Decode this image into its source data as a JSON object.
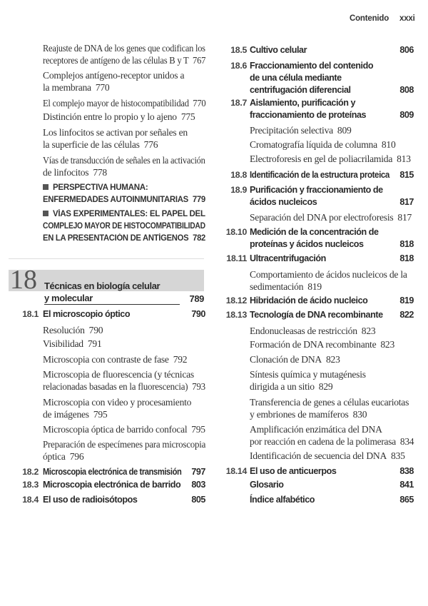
{
  "header": {
    "section": "Contenido",
    "page": "xxxi"
  },
  "left_top": [
    {
      "type": "sub",
      "lines": [
        "Reajuste de DNA de los genes que codifican los",
        "receptores de antígeno de las células B y T"
      ],
      "page": "767"
    },
    {
      "type": "sub",
      "lines": [
        "Complejos antígeno-receptor unidos a",
        "la membrana"
      ],
      "page": "770"
    },
    {
      "type": "sub",
      "lines": [
        "El complejo mayor de histocompatibilidad"
      ],
      "page": "770"
    },
    {
      "type": "sub",
      "lines": [
        "Distinción entre lo propio y lo ajeno"
      ],
      "page": "775"
    },
    {
      "type": "sub",
      "lines": [
        "Los linfocitos se activan por señales en",
        "la superficie de las células"
      ],
      "page": "776"
    },
    {
      "type": "sub",
      "lines": [
        "Vías de transducción de señales en la activación",
        "de linfocitos"
      ],
      "page": "778"
    },
    {
      "type": "caps",
      "lines": [
        "PERSPECTIVA HUMANA:",
        "ENFERMEDADES AUTOINMUNITARIAS"
      ],
      "page": "779"
    },
    {
      "type": "caps",
      "lines": [
        "VÍAS EXPERIMENTALES: EL PAPEL DEL",
        "COMPLEJO MAYOR DE HISTOCOMPATIBILIDAD",
        "EN LA PRESENTACIÓN DE ANTÍGENOS"
      ],
      "page": "782"
    }
  ],
  "chapter": {
    "number": "18",
    "title_lines": [
      "Técnicas en biología celular",
      "y molecular"
    ],
    "page": "789",
    "band_color": "#d6d6d6"
  },
  "left_bottom": [
    {
      "type": "sec",
      "number": "18.1",
      "lines": [
        "El microscopio óptico"
      ],
      "page": "790"
    },
    {
      "type": "sub",
      "lines": [
        "Resolución"
      ],
      "page": "790"
    },
    {
      "type": "sub",
      "lines": [
        "Visibilidad"
      ],
      "page": "791"
    },
    {
      "type": "sub",
      "lines": [
        "Microscopia con contraste de fase"
      ],
      "page": "792"
    },
    {
      "type": "sub",
      "lines": [
        "Microscopia de fluorescencia (y técnicas",
        "relacionadas basadas en la fluorescencia)"
      ],
      "page": "793"
    },
    {
      "type": "sub",
      "lines": [
        "Microscopia con video y procesamiento",
        "de imágenes"
      ],
      "page": "795"
    },
    {
      "type": "sub",
      "lines": [
        "Microscopia óptica de barrido confocal"
      ],
      "page": "795"
    },
    {
      "type": "sub",
      "lines": [
        "Preparación de especímenes para microscopia",
        "óptica"
      ],
      "page": "796"
    },
    {
      "type": "sec",
      "number": "18.2",
      "lines": [
        "Microscopia electrónica de transmisión"
      ],
      "page": "797"
    },
    {
      "type": "sec",
      "number": "18.3",
      "lines": [
        "Microscopia electrónica de barrido"
      ],
      "page": "803"
    },
    {
      "type": "sec",
      "number": "18.4",
      "lines": [
        "El uso de radioisótopos"
      ],
      "page": "805"
    }
  ],
  "right": [
    {
      "type": "sec",
      "number": "18.5",
      "lines": [
        "Cultivo celular"
      ],
      "page": "806"
    },
    {
      "type": "sec",
      "number": "18.6",
      "lines": [
        "Fraccionamiento del contenido",
        "de una célula mediante",
        "centrifugación diferencial"
      ],
      "page": "808"
    },
    {
      "type": "sec",
      "number": "18.7",
      "lines": [
        "Aislamiento, purificación y",
        "fraccionamiento de proteínas"
      ],
      "page": "809"
    },
    {
      "type": "sub",
      "lines": [
        "Precipitación selectiva"
      ],
      "page": "809"
    },
    {
      "type": "sub",
      "lines": [
        "Cromatografía líquida de columna"
      ],
      "page": "810"
    },
    {
      "type": "sub",
      "lines": [
        "Electroforesis en gel de poliacrilamida"
      ],
      "page": "813"
    },
    {
      "type": "sec",
      "number": "18.8",
      "lines": [
        "Identificación de la estructura proteica"
      ],
      "page": "815"
    },
    {
      "type": "sec",
      "number": "18.9",
      "lines": [
        "Purificación y fraccionamiento de",
        "ácidos nucleicos"
      ],
      "page": "817"
    },
    {
      "type": "sub",
      "lines": [
        "Separación del DNA por electroforesis"
      ],
      "page": "817"
    },
    {
      "type": "sec",
      "number": "18.10",
      "lines": [
        "Medición de la concentración de",
        "proteínas y ácidos nucleicos"
      ],
      "page": "818"
    },
    {
      "type": "sec",
      "number": "18.11",
      "lines": [
        "Ultracentrifugación"
      ],
      "page": "818"
    },
    {
      "type": "sub",
      "lines": [
        "Comportamiento de ácidos nucleicos de la",
        "sedimentación"
      ],
      "page": "819"
    },
    {
      "type": "sec",
      "number": "18.12",
      "lines": [
        "Hibridación de ácido nucleico"
      ],
      "page": "819"
    },
    {
      "type": "sec",
      "number": "18.13",
      "lines": [
        "Tecnología de DNA recombinante"
      ],
      "page": "822"
    },
    {
      "type": "sub",
      "lines": [
        "Endonucleasas de restricción"
      ],
      "page": "823"
    },
    {
      "type": "sub",
      "lines": [
        "Formación de DNA recombinante"
      ],
      "page": "823"
    },
    {
      "type": "sub",
      "lines": [
        "Clonación de DNA"
      ],
      "page": "823"
    },
    {
      "type": "sub",
      "lines": [
        "Síntesis química y mutagénesis",
        "dirigida a un sitio"
      ],
      "page": "829"
    },
    {
      "type": "sub",
      "lines": [
        "Transferencia de genes a células eucariotas",
        "y embriones de mamíferos"
      ],
      "page": "830"
    },
    {
      "type": "sub",
      "lines": [
        "Amplificación enzimática del DNA",
        "por reacción en cadena de la polimerasa"
      ],
      "page": "834"
    },
    {
      "type": "sub",
      "lines": [
        "Identificación de secuencia del DNA"
      ],
      "page": "835"
    },
    {
      "type": "sec",
      "number": "18.14",
      "lines": [
        "El uso de anticuerpos"
      ],
      "page": "838"
    },
    {
      "type": "sec",
      "number": "",
      "lines": [
        "Glosario"
      ],
      "page": "841"
    },
    {
      "type": "sec",
      "number": "",
      "lines": [
        "Índice alfabético"
      ],
      "page": "865"
    }
  ]
}
